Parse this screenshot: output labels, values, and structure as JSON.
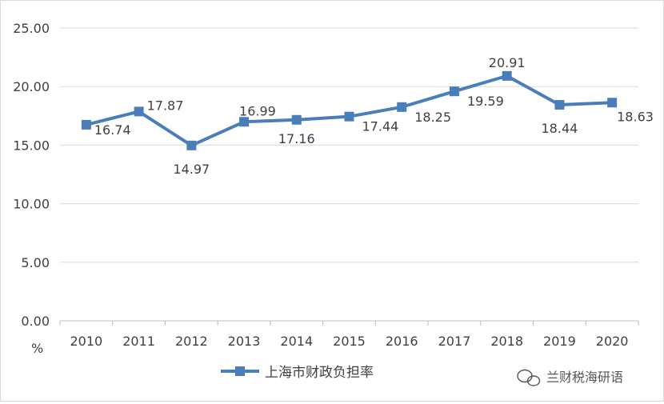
{
  "chart_data": {
    "type": "line",
    "categories": [
      "2010",
      "2011",
      "2012",
      "2013",
      "2014",
      "2015",
      "2016",
      "2017",
      "2018",
      "2019",
      "2020"
    ],
    "series": [
      {
        "name": "上海市财政负担率",
        "values": [
          16.74,
          17.87,
          14.97,
          16.99,
          17.16,
          17.44,
          18.25,
          19.59,
          20.91,
          18.44,
          18.63
        ],
        "color": "#4a7ebb",
        "marker": "square"
      }
    ],
    "yunit": "%",
    "ylim": [
      0,
      25
    ],
    "yticks": [
      "0.00",
      "5.00",
      "10.00",
      "15.00",
      "20.00",
      "25.00"
    ],
    "grid": true,
    "legend": "bottom"
  },
  "watermark": {
    "text": "兰财税海研语",
    "icon": "wechat-icon"
  }
}
